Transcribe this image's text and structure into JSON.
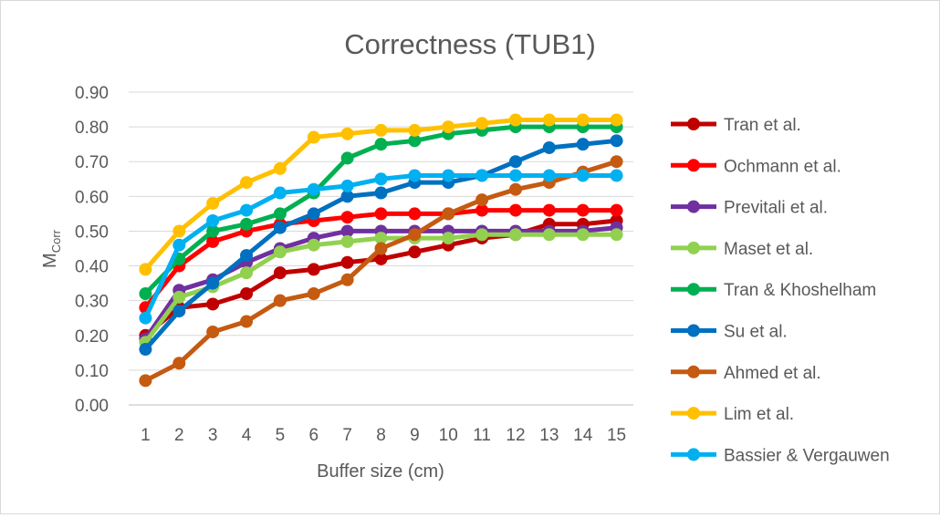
{
  "chart_data": {
    "type": "line",
    "title": "Correctness (TUB1)",
    "xlabel": "Buffer size (cm)",
    "ylabel": {
      "main": "M",
      "subscript": "Corr"
    },
    "x": [
      1,
      2,
      3,
      4,
      5,
      6,
      7,
      8,
      9,
      10,
      11,
      12,
      13,
      14,
      15
    ],
    "ylim": [
      0,
      0.9
    ],
    "yticks": [
      "0.00",
      "0.10",
      "0.20",
      "0.30",
      "0.40",
      "0.50",
      "0.60",
      "0.70",
      "0.80",
      "0.90"
    ],
    "grid": "horizontal",
    "legend_position": "right",
    "series": [
      {
        "name": "Tran et al.",
        "color": "#C00000",
        "values": [
          0.2,
          0.28,
          0.29,
          0.32,
          0.38,
          0.39,
          0.41,
          0.42,
          0.44,
          0.46,
          0.48,
          0.49,
          0.52,
          0.52,
          0.53
        ]
      },
      {
        "name": "Ochmann et al.",
        "color": "#FF0000",
        "values": [
          0.28,
          0.4,
          0.47,
          0.5,
          0.52,
          0.53,
          0.54,
          0.55,
          0.55,
          0.55,
          0.56,
          0.56,
          0.56,
          0.56,
          0.56
        ]
      },
      {
        "name": "Previtali et al.",
        "color": "#7030A0",
        "values": [
          0.19,
          0.33,
          0.36,
          0.41,
          0.45,
          0.48,
          0.5,
          0.5,
          0.5,
          0.5,
          0.5,
          0.5,
          0.5,
          0.5,
          0.51
        ]
      },
      {
        "name": "Maset et al.",
        "color": "#92D050",
        "values": [
          0.18,
          0.31,
          0.34,
          0.38,
          0.44,
          0.46,
          0.47,
          0.48,
          0.48,
          0.48,
          0.49,
          0.49,
          0.49,
          0.49,
          0.49
        ]
      },
      {
        "name": "Tran & Khoshelham",
        "color": "#00B050",
        "values": [
          0.32,
          0.42,
          0.5,
          0.52,
          0.55,
          0.61,
          0.71,
          0.75,
          0.76,
          0.78,
          0.79,
          0.8,
          0.8,
          0.8,
          0.8
        ]
      },
      {
        "name": "Su et al.",
        "color": "#0070C0",
        "values": [
          0.16,
          0.27,
          0.35,
          0.43,
          0.51,
          0.55,
          0.6,
          0.61,
          0.64,
          0.64,
          0.66,
          0.7,
          0.74,
          0.75,
          0.76
        ]
      },
      {
        "name": "Ahmed et al.",
        "color": "#C55A11",
        "values": [
          0.07,
          0.12,
          0.21,
          0.24,
          0.3,
          0.32,
          0.36,
          0.45,
          0.49,
          0.55,
          0.59,
          0.62,
          0.64,
          0.67,
          0.7
        ]
      },
      {
        "name": "Lim et al.",
        "color": "#FFC000",
        "values": [
          0.39,
          0.5,
          0.58,
          0.64,
          0.68,
          0.77,
          0.78,
          0.79,
          0.79,
          0.8,
          0.81,
          0.82,
          0.82,
          0.82,
          0.82
        ]
      },
      {
        "name": "Bassier & Vergauwen",
        "color": "#00B0F0",
        "values": [
          0.25,
          0.46,
          0.53,
          0.56,
          0.61,
          0.62,
          0.63,
          0.65,
          0.66,
          0.66,
          0.66,
          0.66,
          0.66,
          0.66,
          0.66
        ]
      }
    ]
  }
}
